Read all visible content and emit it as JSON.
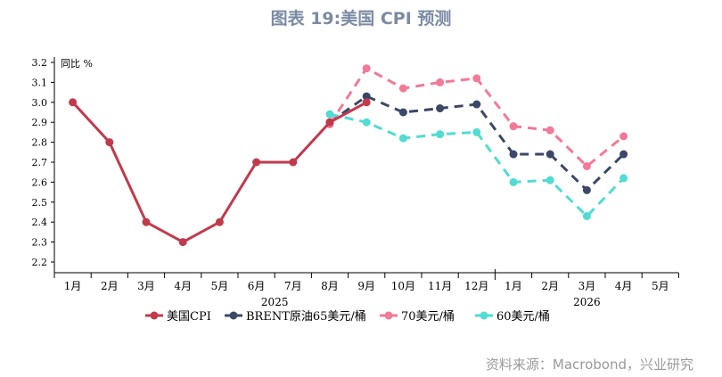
{
  "chart_data": {
    "type": "line",
    "title": "图表 19:美国 CPI 预测",
    "ylabel": "同比 %",
    "ylim": [
      2.2,
      3.2
    ],
    "yticks": [
      "3.2",
      "3.1",
      "3.0",
      "2.9",
      "2.8",
      "2.7",
      "2.6",
      "2.5",
      "2.4",
      "2.3",
      "2.2"
    ],
    "categories": [
      "1月",
      "2月",
      "3月",
      "4月",
      "5月",
      "6月",
      "7月",
      "8月",
      "9月",
      "10月",
      "11月",
      "12月",
      "1月",
      "2月",
      "3月",
      "4月",
      "5月"
    ],
    "years": [
      {
        "label": "2025",
        "from": 0,
        "to": 11
      },
      {
        "label": "2026",
        "from": 12,
        "to": 16
      }
    ],
    "legend_position": "bottom",
    "series": [
      {
        "name": "美国CPI",
        "color": "#c13a4c",
        "dashed": false,
        "values": [
          3.0,
          2.8,
          2.4,
          2.3,
          2.4,
          2.7,
          2.7,
          2.9,
          3.0,
          null,
          null,
          null,
          null,
          null,
          null,
          null,
          null
        ]
      },
      {
        "name": "BRENT原油65美元/桶",
        "color": "#3b4868",
        "dashed": true,
        "values": [
          null,
          null,
          null,
          null,
          null,
          null,
          null,
          2.9,
          3.03,
          2.95,
          2.97,
          2.99,
          2.74,
          2.74,
          2.56,
          2.74,
          null
        ]
      },
      {
        "name": "70美元/桶",
        "color": "#f27a96",
        "dashed": true,
        "values": [
          null,
          null,
          null,
          null,
          null,
          null,
          null,
          2.89,
          3.17,
          3.07,
          3.1,
          3.12,
          2.88,
          2.86,
          2.68,
          2.83,
          null
        ]
      },
      {
        "name": "60美元/桶",
        "color": "#52dbd3",
        "dashed": true,
        "values": [
          null,
          null,
          null,
          null,
          null,
          null,
          null,
          2.94,
          2.9,
          2.82,
          2.84,
          2.85,
          2.6,
          2.61,
          2.43,
          2.62,
          null
        ]
      }
    ]
  },
  "source": "资料来源：Macrobond，兴业研究"
}
